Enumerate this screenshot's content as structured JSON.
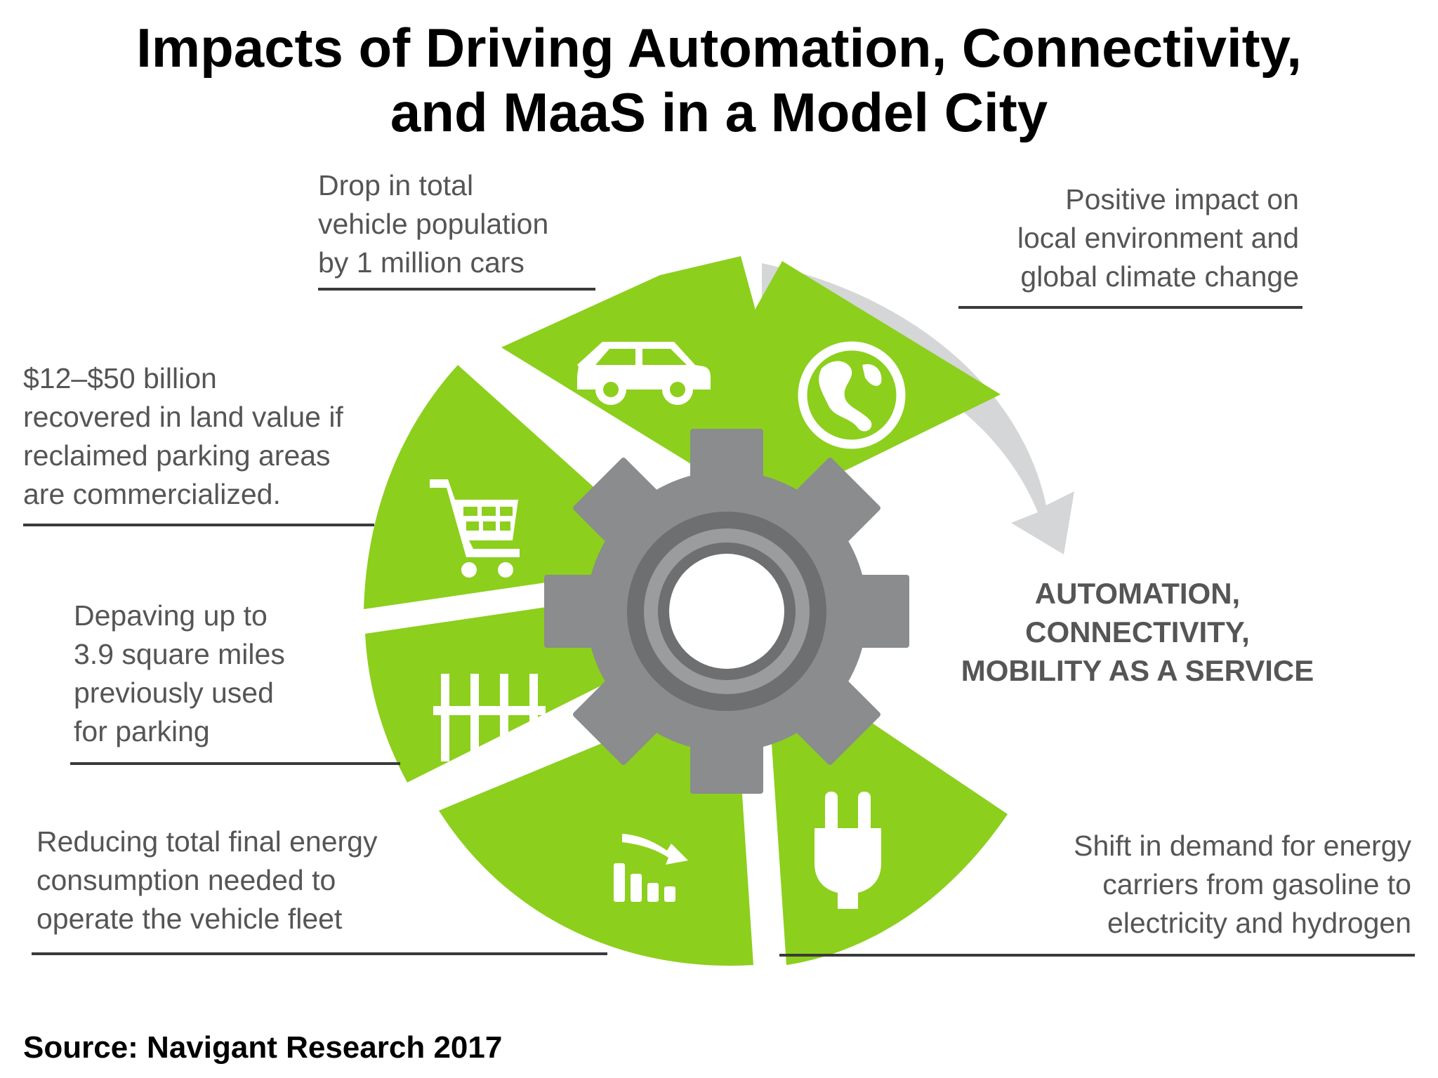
{
  "title": {
    "line1": "Impacts of Driving Automation, Connectivity,",
    "line2": "and MaaS in a Model City"
  },
  "center_label": {
    "line1": "AUTOMATION,",
    "line2": "CONNECTIVITY,",
    "line3": "MOBILITY AS A SERVICE"
  },
  "impacts": {
    "vehicles": {
      "lines": [
        "Drop in total",
        "vehicle population",
        "by 1 million cars"
      ],
      "icon": "car-icon"
    },
    "environment": {
      "lines": [
        "Positive impact on",
        "local environment and",
        "global climate change"
      ],
      "icon": "globe-icon"
    },
    "land_value": {
      "lines": [
        "$12–$50 billion",
        "recovered in land value if",
        "reclaimed parking areas",
        "are commercialized."
      ],
      "icon": "shopping-cart-icon"
    },
    "depaving": {
      "lines": [
        "Depaving up to",
        "3.9 square miles",
        "previously used",
        "for parking"
      ],
      "icon": "parking-lot-icon"
    },
    "energy": {
      "lines": [
        "Reducing total final energy",
        "consumption needed to",
        "operate the vehicle fleet"
      ],
      "icon": "declining-bars-icon"
    },
    "energy_shift": {
      "lines": [
        "Shift in demand for energy",
        "carriers from gasoline to",
        "electricity and hydrogen"
      ],
      "icon": "plug-icon"
    }
  },
  "source": "Source: Navigant Research 2017",
  "colors": {
    "segment_green": "#8ccf1d",
    "gear_gray": "#8a8c8e",
    "arrow_gray": "#d5d6d7",
    "rule": "#3a3a3a",
    "text": "#555555"
  }
}
